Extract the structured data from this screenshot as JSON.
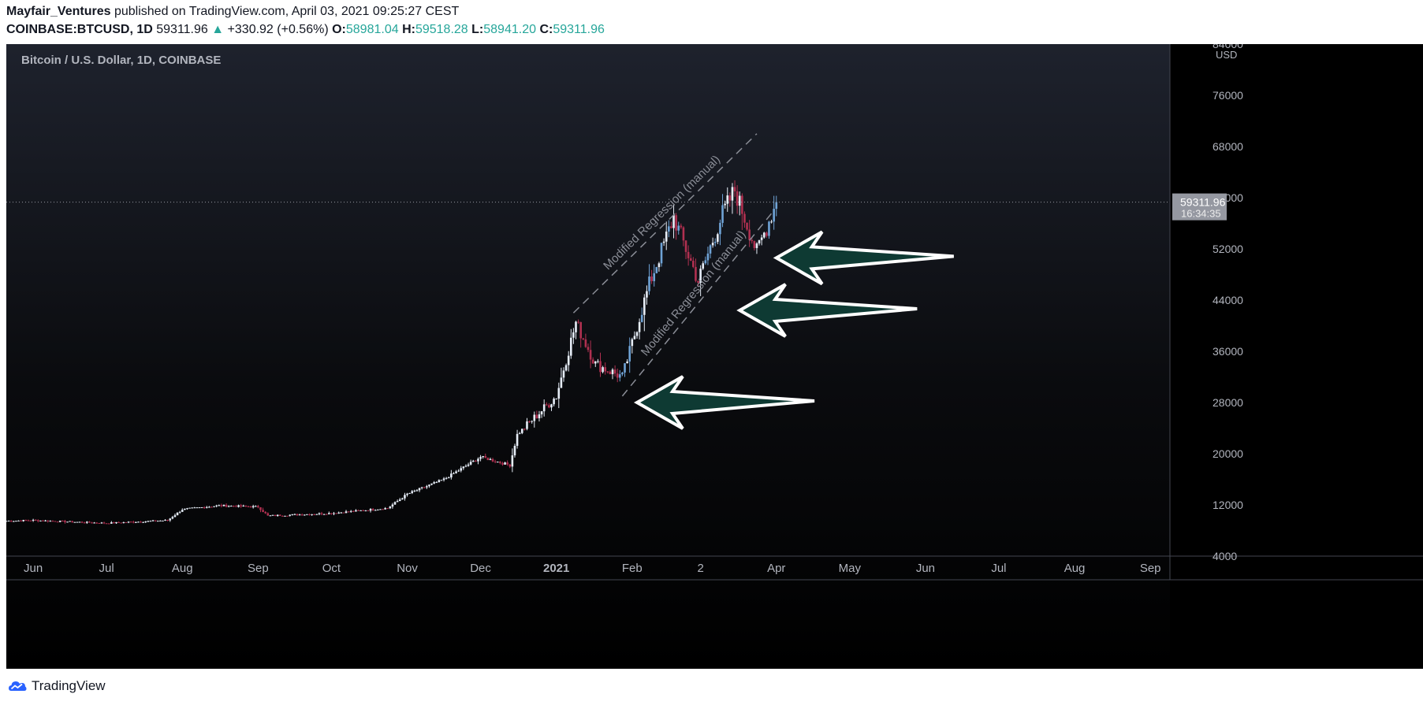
{
  "header": {
    "publisher": "Mayfair_Ventures",
    "published_text": " published on TradingView.com, April 03, 2021 09:25:27 CEST",
    "symbol": "COINBASE:BTCUSD, 1D",
    "last_price": "59311.96",
    "up_arrow": "▲",
    "change": "+330.92 (+0.56%)",
    "o_label": "O:",
    "o_value": "58981.04",
    "h_label": "H:",
    "h_value": "59518.28",
    "l_label": "L:",
    "l_value": "58941.20",
    "c_label": "C:",
    "c_value": "59311.96"
  },
  "footer": {
    "brand": "TradingView"
  },
  "colors": {
    "up": "#e6edf7",
    "down": "#b03050",
    "blue": "#6fa3d6",
    "arrow_fill": "#0e3a33",
    "label_bg": "#9598a1",
    "accent": "#26a69a"
  },
  "chart_data": {
    "type": "candlestick",
    "title": "Bitcoin / U.S. Dollar, 1D, COINBASE",
    "y_unit": "USD",
    "ylim": [
      4000,
      84000
    ],
    "y_ticks": [
      "84000",
      "76000",
      "68000",
      "60000",
      "52000",
      "44000",
      "36000",
      "28000",
      "20000",
      "12000",
      "4000"
    ],
    "x_ticks": [
      "Jun",
      "Jul",
      "Aug",
      "Sep",
      "Oct",
      "Nov",
      "Dec",
      "2021",
      "Feb",
      "2",
      "Apr",
      "May",
      "Jun",
      "Jul",
      "Aug",
      "Sep"
    ],
    "x_tick_days": [
      0,
      30,
      61,
      92,
      122,
      153,
      183,
      214,
      245,
      273,
      304,
      334,
      365,
      395,
      426,
      457
    ],
    "day_range": [
      -11,
      465
    ],
    "last_price_label": "59311.96",
    "countdown_label": "16:34:35",
    "price_series": [
      {
        "day": -11,
        "close": 9500
      },
      {
        "day": 0,
        "close": 9600
      },
      {
        "day": 30,
        "close": 9150
      },
      {
        "day": 55,
        "close": 9600
      },
      {
        "day": 61,
        "close": 11300
      },
      {
        "day": 76,
        "close": 11900
      },
      {
        "day": 92,
        "close": 11700
      },
      {
        "day": 96,
        "close": 10300
      },
      {
        "day": 122,
        "close": 10700
      },
      {
        "day": 145,
        "close": 11500
      },
      {
        "day": 153,
        "close": 13700
      },
      {
        "day": 168,
        "close": 16000
      },
      {
        "day": 183,
        "close": 19500
      },
      {
        "day": 195,
        "close": 18200
      },
      {
        "day": 198,
        "close": 23000
      },
      {
        "day": 214,
        "close": 29000
      },
      {
        "day": 222,
        "close": 40500
      },
      {
        "day": 230,
        "close": 34000
      },
      {
        "day": 241,
        "close": 32000
      },
      {
        "day": 252,
        "close": 46500
      },
      {
        "day": 262,
        "close": 57000
      },
      {
        "day": 272,
        "close": 47000
      },
      {
        "day": 282,
        "close": 57500
      },
      {
        "day": 287,
        "close": 61200
      },
      {
        "day": 296,
        "close": 51500
      },
      {
        "day": 304,
        "close": 59300
      }
    ],
    "annotations": [
      {
        "type": "dashed-line",
        "label": "Modified Regression (manual)",
        "from": {
          "day": 221,
          "price": 42000
        },
        "to": {
          "day": 296,
          "price": 70000
        }
      },
      {
        "type": "dashed-line",
        "label": "Modified Regression (manual)",
        "from": {
          "day": 241,
          "price": 29000
        },
        "to": {
          "day": 303,
          "price": 58000
        }
      },
      {
        "type": "arrow",
        "direction": "left",
        "tip": {
          "day": 304,
          "price": 50600
        }
      },
      {
        "type": "arrow",
        "direction": "left",
        "tip": {
          "day": 289,
          "price": 42400
        }
      },
      {
        "type": "arrow",
        "direction": "left",
        "tip": {
          "day": 247,
          "price": 28000
        }
      }
    ]
  }
}
